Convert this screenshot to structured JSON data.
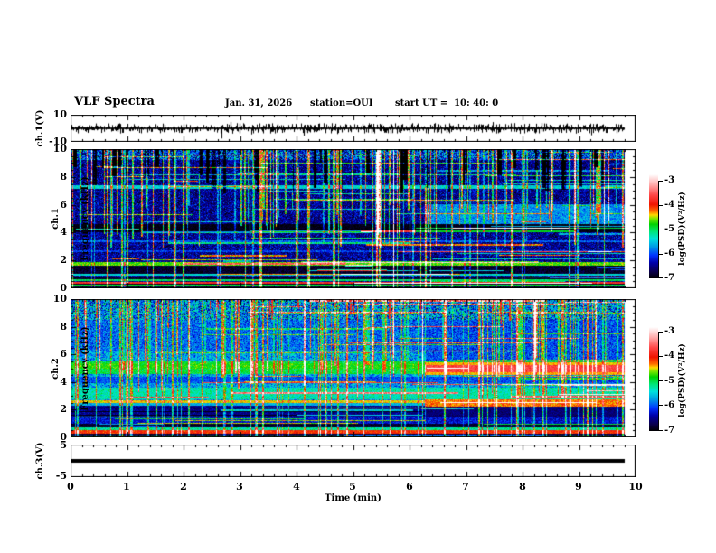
{
  "title": "VLF Spectra",
  "header": {
    "date": "Jan. 31, 2026",
    "station": "station=OUI",
    "start_ut": "start UT =  10: 40: 0"
  },
  "time_axis": {
    "label": "Time (min)",
    "ticks": [
      "0",
      "1",
      "2",
      "3",
      "4",
      "5",
      "6",
      "7",
      "8",
      "9",
      "10"
    ]
  },
  "panels": {
    "ch1_wave": {
      "label": "ch.1(V)",
      "ymax": "10",
      "ymin": "-10"
    },
    "ch1_spect": {
      "channel": "ch.1",
      "ylabel": "Frequency (kHz)",
      "yticks": [
        "0",
        "2",
        "4",
        "6",
        "8",
        "10"
      ]
    },
    "ch2_spect": {
      "channel": "ch.2",
      "ylabel": "Frequency (kHz)",
      "yticks": [
        "0",
        "2",
        "4",
        "6",
        "8",
        "10"
      ]
    },
    "ch3_wave": {
      "label": "ch.3(V)",
      "ymax": "5",
      "ymin": "-5"
    }
  },
  "colorbar": {
    "label": "log(PSD)(V²/Hz)",
    "ticks": [
      "-3",
      "-4",
      "-5",
      "-6",
      "-7"
    ]
  },
  "chart_data": [
    {
      "type": "line",
      "channel": "ch.1(V)",
      "style": "noise",
      "ylim": [
        -10,
        10
      ],
      "xlim": [
        0,
        10
      ],
      "t_end": 9.8,
      "baseline_v": 0,
      "noise_amp_v": 1.5,
      "seed": 11,
      "spikes": [
        {
          "t": 0.85,
          "v": 3.2
        },
        {
          "t": 2.67,
          "v": -7.5
        },
        {
          "t": 3.2,
          "v": -4.5
        },
        {
          "t": 4.08,
          "v": 3.6
        },
        {
          "t": 4.72,
          "v": -4.2
        },
        {
          "t": 5.55,
          "v": -3.2
        },
        {
          "t": 7.47,
          "v": 4.6
        },
        {
          "t": 8.55,
          "v": -3.6
        },
        {
          "t": 9.3,
          "v": 3.0
        }
      ]
    },
    {
      "type": "heatmap",
      "channel": "ch.1",
      "ylabel": "Frequency (kHz)",
      "ylim": [
        0,
        10
      ],
      "xlim": [
        0,
        10
      ],
      "t_end": 9.8,
      "transition": 6.27,
      "value_label": "log(PSD)(V²/Hz)",
      "vrange": [
        -7,
        -3
      ],
      "base": {
        "v": -6.5,
        "n": 0.45
      },
      "bands": [
        {
          "f0": 9.2,
          "f1": 10,
          "v": -6.1,
          "n": 0.8
        },
        {
          "f0": 7.15,
          "f1": 7.4,
          "v": -5.5,
          "n": 0.3
        },
        {
          "f0": 4.0,
          "f1": 4.62,
          "v": -6.93,
          "n": 0.12
        },
        {
          "f0": 3.3,
          "f1": 3.45,
          "v": -6.0,
          "n": 0.3
        },
        {
          "f0": 2.6,
          "f1": 2.75,
          "v": -6.1,
          "n": 0.3
        },
        {
          "f0": 1.62,
          "f1": 1.88,
          "v": -4.8,
          "n": 0.3
        },
        {
          "f0": 1.05,
          "f1": 1.6,
          "v": -6.85,
          "n": 0.2
        },
        {
          "f0": 0.88,
          "f1": 1.03,
          "v": -5.5,
          "n": 0.2
        },
        {
          "f0": 0.62,
          "f1": 0.8,
          "v": -6.85,
          "n": 0.15
        },
        {
          "f0": 0.5,
          "f1": 0.62,
          "v": -5.15,
          "n": 0.2
        },
        {
          "f0": 0.33,
          "f1": 0.47,
          "v": -3.95,
          "n": 0.2
        },
        {
          "f0": 0.24,
          "f1": 0.33,
          "v": -6.9,
          "n": 0.1
        },
        {
          "f0": 0.1,
          "f1": 0.24,
          "v": -5.05,
          "n": 0.2
        },
        {
          "f0": 0.0,
          "f1": 0.1,
          "v": -6.8,
          "n": 0.2
        },
        {
          "f0": 4.62,
          "f1": 6.05,
          "v": -5.8,
          "n": 0.35,
          "t0": 6.27
        }
      ],
      "tex": {
        "stripes": 150,
        "dv": [
          0.6,
          2.2
        ],
        "part": 0.6,
        "dark": 45,
        "hsegs": 70,
        "seed": 42
      }
    },
    {
      "type": "heatmap",
      "channel": "ch.2",
      "ylabel": "Frequency (kHz)",
      "ylim": [
        0,
        10
      ],
      "xlim": [
        0,
        10
      ],
      "t_end": 9.8,
      "transition": 6.27,
      "value_label": "log(PSD)(V²/Hz)",
      "vrange": [
        -7,
        -3
      ],
      "base": {
        "v": -5.75,
        "n": 0.5
      },
      "bands": [
        {
          "f0": 8.5,
          "f1": 10,
          "v": -5.85,
          "n": 0.85
        },
        {
          "f0": 6.3,
          "f1": 8.5,
          "v": -5.95,
          "n": 0.45
        },
        {
          "f0": 4.55,
          "f1": 5.5,
          "v": -5.05,
          "n": 0.3
        },
        {
          "f0": 4.95,
          "f1": 5.35,
          "v": -4.9,
          "n": 0.25
        },
        {
          "f0": 3.95,
          "f1": 4.4,
          "v": -6.05,
          "n": 0.3
        },
        {
          "f0": 2.75,
          "f1": 3.6,
          "v": -5.35,
          "n": 0.3
        },
        {
          "f0": 2.48,
          "f1": 2.68,
          "v": -4.55,
          "n": 0.2
        },
        {
          "f0": 2.3,
          "f1": 2.48,
          "v": -5.7,
          "n": 0.2
        },
        {
          "f0": 1.45,
          "f1": 2.3,
          "v": -6.5,
          "n": 0.25
        },
        {
          "f0": 1.55,
          "f1": 1.63,
          "v": -6.95,
          "n": 0.05
        },
        {
          "f0": 1.84,
          "f1": 1.92,
          "v": -6.95,
          "n": 0.05
        },
        {
          "f0": 2.08,
          "f1": 2.16,
          "v": -6.95,
          "n": 0.05
        },
        {
          "f0": 1.0,
          "f1": 1.45,
          "v": -6.3,
          "n": 0.3
        },
        {
          "f0": 0.75,
          "f1": 1.0,
          "v": -6.85,
          "n": 0.15
        },
        {
          "f0": 0.55,
          "f1": 0.75,
          "v": -5.3,
          "n": 0.3
        },
        {
          "f0": 0.28,
          "f1": 0.55,
          "v": -4.2,
          "n": 0.25
        },
        {
          "f0": 0.15,
          "f1": 0.28,
          "v": -6.8,
          "n": 0.15
        },
        {
          "f0": 0.0,
          "f1": 0.15,
          "v": -5.1,
          "n": 0.6
        },
        {
          "f0": 5.5,
          "f1": 8.5,
          "v": -6.05,
          "n": 0.4,
          "t0": 6.27
        },
        {
          "f0": 4.5,
          "f1": 4.68,
          "v": -4.5,
          "n": 0.15,
          "t0": 6.27
        },
        {
          "f0": 4.68,
          "f1": 5.22,
          "v": -3.85,
          "n": 0.18,
          "t0": 6.27
        },
        {
          "f0": 5.22,
          "f1": 5.4,
          "v": -4.5,
          "n": 0.15,
          "t0": 6.27
        },
        {
          "f0": 2.2,
          "f1": 2.75,
          "v": -4.4,
          "n": 0.25,
          "t0": 6.27
        },
        {
          "f0": 1.45,
          "f1": 2.2,
          "v": -6.6,
          "n": 0.2,
          "t0": 6.27
        }
      ],
      "tex": {
        "stripes": 160,
        "dv": [
          0.5,
          1.8
        ],
        "part": 0.5,
        "orange": 18,
        "hsegs": 50,
        "seed": 7
      }
    },
    {
      "type": "line",
      "channel": "ch.3(V)",
      "style": "flat",
      "ylim": [
        -5,
        5
      ],
      "xlim": [
        0,
        10
      ],
      "t_end": 9.8,
      "value": 0,
      "thickness_v": 1.1,
      "seed": 3
    }
  ]
}
